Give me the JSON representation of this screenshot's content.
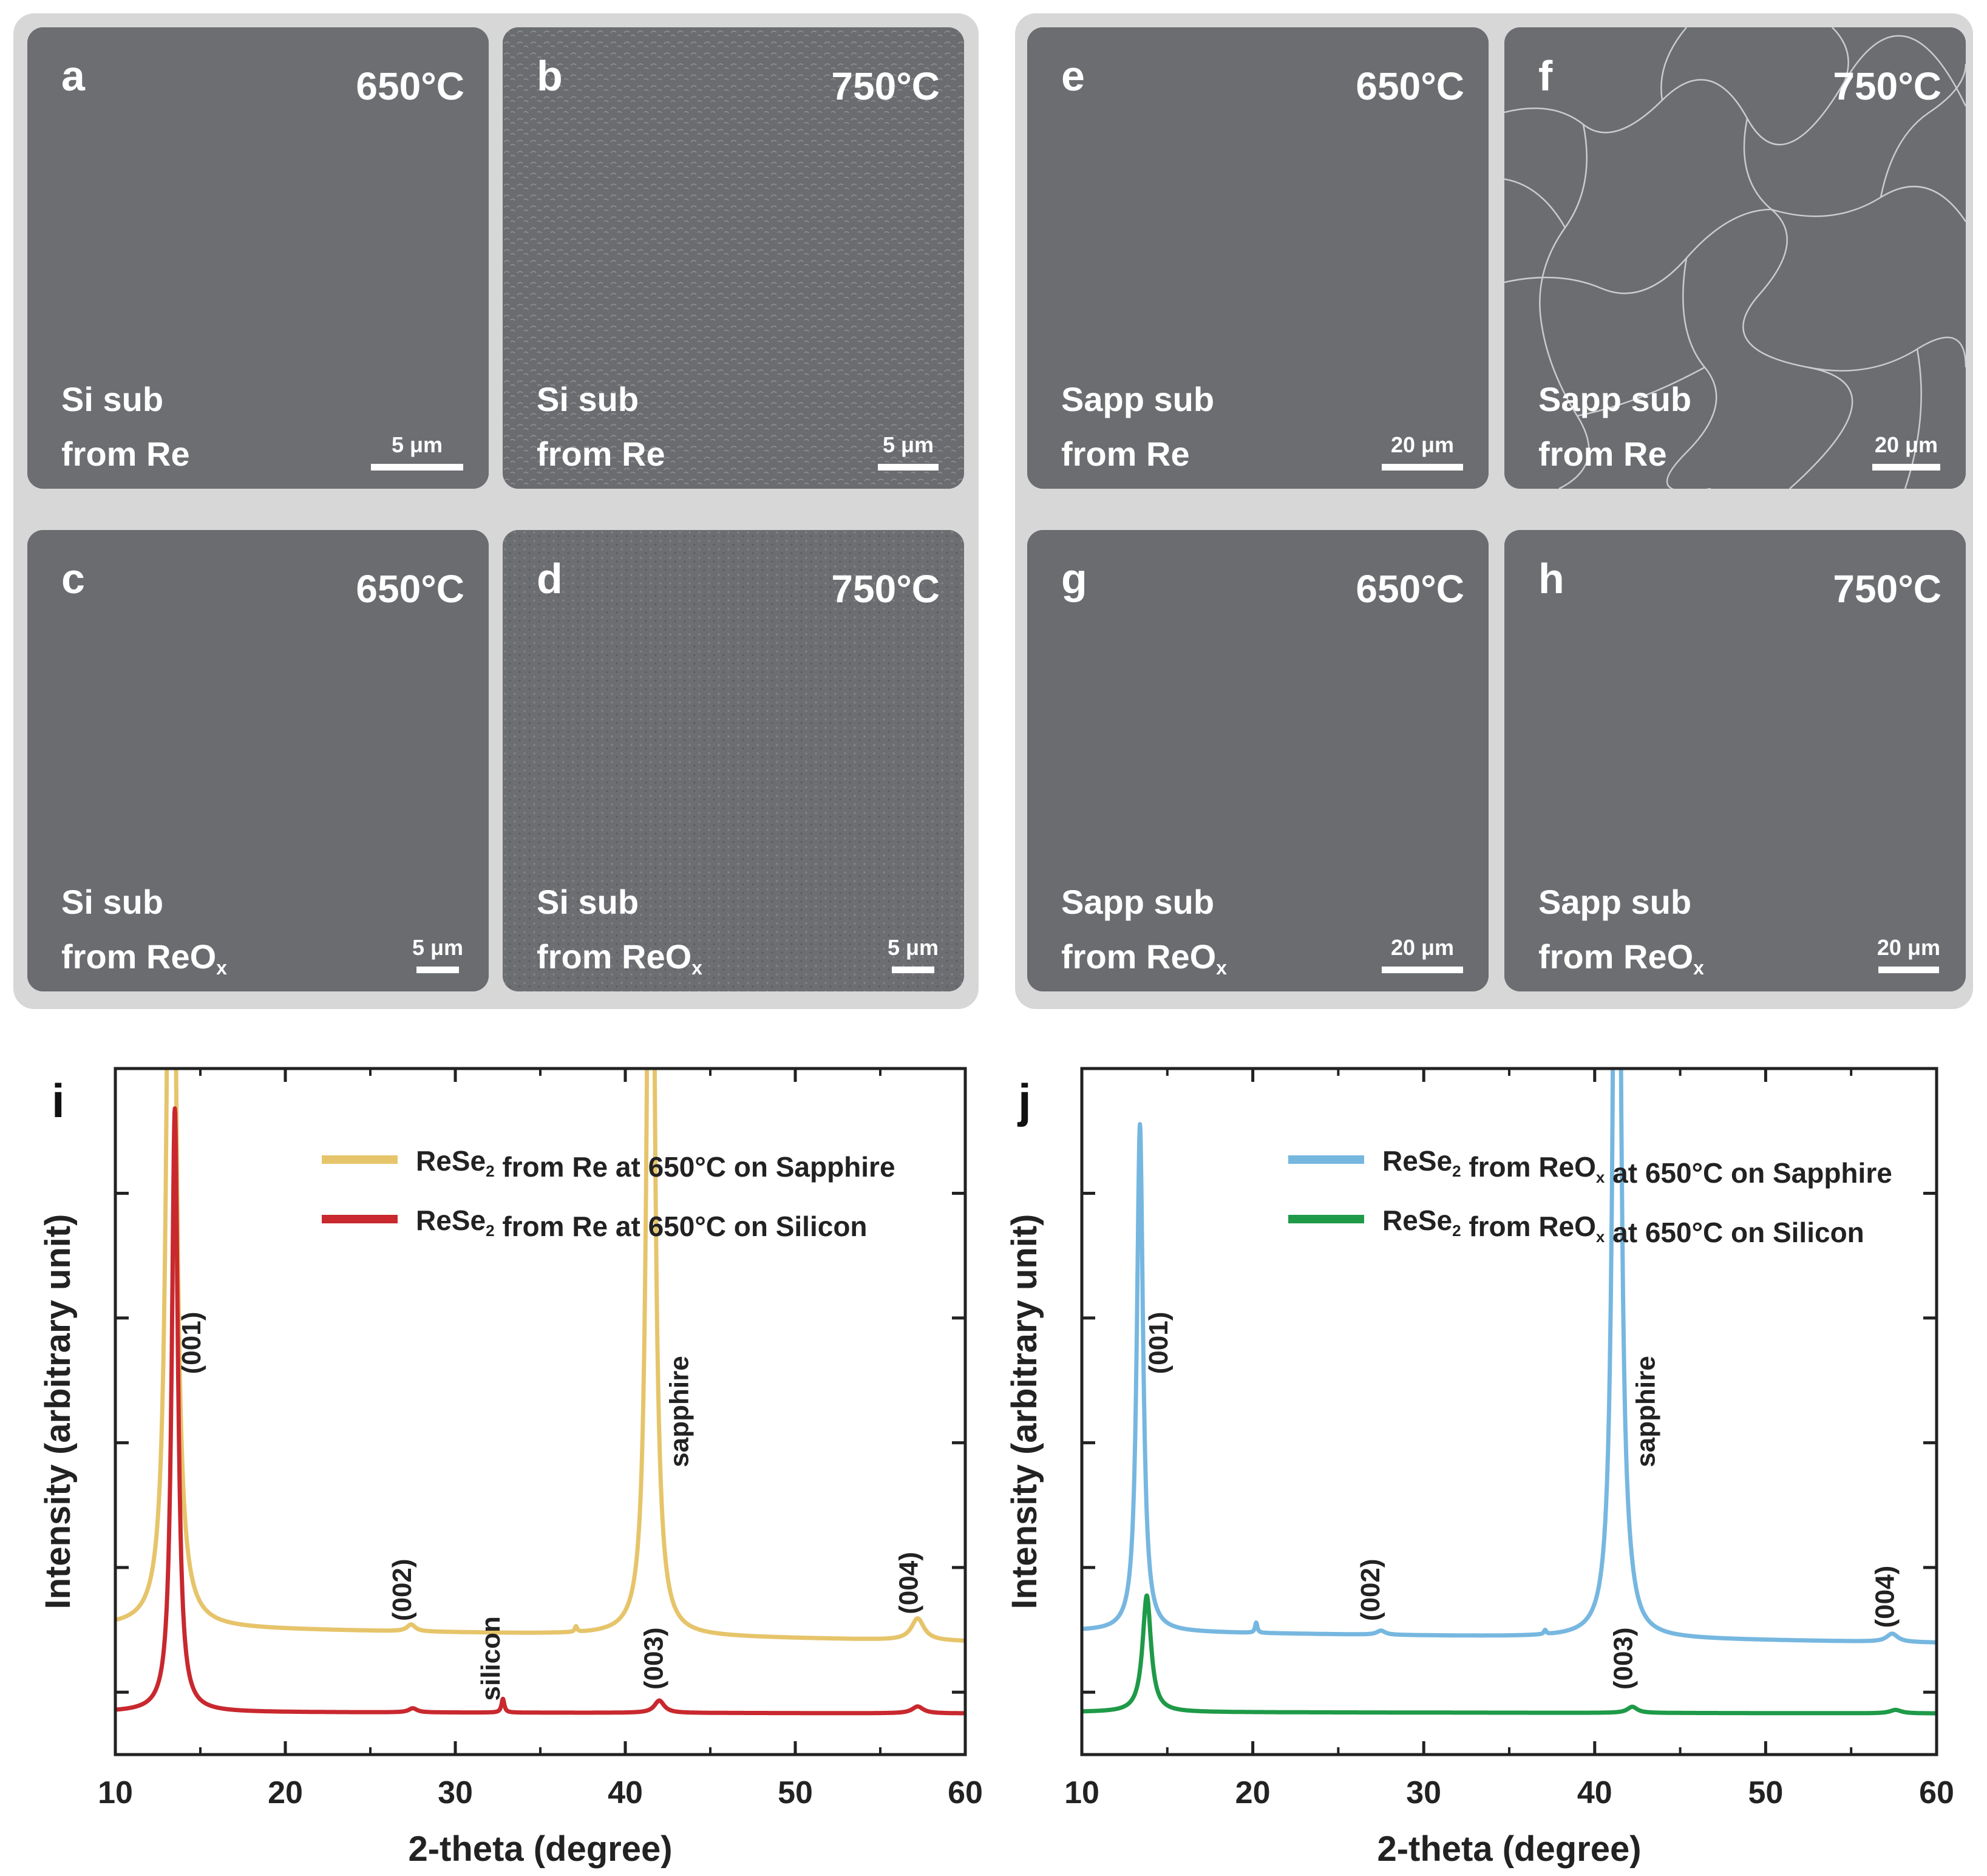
{
  "sem_panels": [
    {
      "letter": "a",
      "temp": "650°C",
      "substrate": "Si sub",
      "source_main": "from Re",
      "source_sub": "",
      "scale": "5 μm"
    },
    {
      "letter": "b",
      "temp": "750°C",
      "substrate": "Si sub",
      "source_main": "from Re",
      "source_sub": "",
      "scale": "5 μm"
    },
    {
      "letter": "c",
      "temp": "650°C",
      "substrate": "Si sub",
      "source_main": "from ReO",
      "source_sub": "x",
      "scale": "5 μm"
    },
    {
      "letter": "d",
      "temp": "750°C",
      "substrate": "Si sub",
      "source_main": "from ReO",
      "source_sub": "x",
      "scale": "5 μm"
    },
    {
      "letter": "e",
      "temp": "650°C",
      "substrate": "Sapp sub",
      "source_main": "from Re",
      "source_sub": "",
      "scale": "20 μm"
    },
    {
      "letter": "f",
      "temp": "750°C",
      "substrate": "Sapp sub",
      "source_main": "from Re",
      "source_sub": "",
      "scale": "20 μm"
    },
    {
      "letter": "g",
      "temp": "650°C",
      "substrate": "Sapp sub",
      "source_main": "from ReO",
      "source_sub": "x",
      "scale": "20 μm"
    },
    {
      "letter": "h",
      "temp": "750°C",
      "substrate": "Sapp sub",
      "source_main": "from ReO",
      "source_sub": "x",
      "scale": "20 μm"
    }
  ],
  "colors": {
    "sem_bg": "#6a6c70",
    "group_bg": "#d7d7d7",
    "yellow": "#e6c46a",
    "red": "#c8282e",
    "blue": "#76b7e0",
    "green": "#1e9a48"
  },
  "chart_data": [
    {
      "type": "line",
      "panel_letter": "i",
      "xlabel": "2-theta (degree)",
      "ylabel": "Intensity (arbitrary unit)",
      "xlim": [
        10,
        60
      ],
      "ylim": [
        0,
        100
      ],
      "xticks": [
        10,
        20,
        30,
        40,
        50,
        60
      ],
      "series": [
        {
          "name": "ReSe2 from Re at 650°C on Sapphire",
          "legend_main": "ReSe",
          "legend_sub": "2",
          "legend_rest": " from Re at 650°C on Sapphire",
          "color": "#e6c46a",
          "baseline": [
            [
              10,
              18.6
            ],
            [
              60,
              16.5
            ]
          ],
          "peaks": [
            {
              "x": 13.3,
              "h": 180,
              "w": 0.25
            },
            {
              "x": 27.4,
              "h": 1.0,
              "w": 0.3
            },
            {
              "x": 37.1,
              "h": 0.8,
              "w": 0.08
            },
            {
              "x": 41.5,
              "h": 170,
              "w": 0.22
            },
            {
              "x": 42.0,
              "h": 1.6,
              "w": 0.4
            },
            {
              "x": 57.2,
              "h": 3.2,
              "w": 0.45
            }
          ]
        },
        {
          "name": "ReSe2 from Re at 650°C on Silicon",
          "legend_main": "ReSe",
          "legend_sub": "2",
          "legend_rest": " from Re at 650°C on Silicon",
          "color": "#c8282e",
          "baseline": [
            [
              10,
              6.2
            ],
            [
              60,
              6.0
            ]
          ],
          "peaks": [
            {
              "x": 13.5,
              "h": 88,
              "w": 0.22
            },
            {
              "x": 27.5,
              "h": 0.6,
              "w": 0.3
            },
            {
              "x": 32.8,
              "h": 2.0,
              "w": 0.1
            },
            {
              "x": 42.0,
              "h": 1.8,
              "w": 0.35
            },
            {
              "x": 57.2,
              "h": 1.0,
              "w": 0.4
            }
          ]
        }
      ],
      "annotations": [
        {
          "text": "(001)",
          "x": 15.0,
          "y": 60
        },
        {
          "text": "(002)",
          "x": 27.4,
          "y": 24
        },
        {
          "text": "silicon",
          "x": 32.6,
          "y": 14
        },
        {
          "text": "(003)",
          "x": 42.2,
          "y": 14
        },
        {
          "text": "sapphire",
          "x": 43.7,
          "y": 50
        },
        {
          "text": "(004)",
          "x": 57.2,
          "y": 25
        }
      ]
    },
    {
      "type": "line",
      "panel_letter": "j",
      "xlabel": "2-theta (degree)",
      "ylabel": "Intensity (arbitrary unit)",
      "xlim": [
        10,
        60
      ],
      "ylim": [
        0,
        100
      ],
      "xticks": [
        10,
        20,
        30,
        40,
        50,
        60
      ],
      "series": [
        {
          "name": "ReSe2 from ReOx at 650°C on Sapphire",
          "legend_main": "ReSe",
          "legend_sub": "2",
          "legend_rest": " from ReO",
          "legend_sub2": "x",
          "legend_rest2": " at 650°C on Sapphire",
          "color": "#76b7e0",
          "baseline": [
            [
              10,
              18.0
            ],
            [
              60,
              16.3
            ]
          ],
          "peaks": [
            {
              "x": 13.4,
              "h": 74,
              "w": 0.22
            },
            {
              "x": 20.2,
              "h": 1.5,
              "w": 0.08
            },
            {
              "x": 27.5,
              "h": 0.6,
              "w": 0.3
            },
            {
              "x": 37.1,
              "h": 0.6,
              "w": 0.08
            },
            {
              "x": 41.3,
              "h": 180,
              "w": 0.22
            },
            {
              "x": 42.0,
              "h": 1.5,
              "w": 0.4
            },
            {
              "x": 57.4,
              "h": 1.2,
              "w": 0.4
            }
          ]
        },
        {
          "name": "ReSe2 from ReOx at 650°C on Silicon",
          "legend_main": "ReSe",
          "legend_sub": "2",
          "legend_rest": " from ReO",
          "legend_sub2": "x",
          "legend_rest2": " at 650°C on Silicon",
          "color": "#1e9a48",
          "baseline": [
            [
              10,
              6.2
            ],
            [
              60,
              6.0
            ]
          ],
          "peaks": [
            {
              "x": 13.8,
              "h": 17,
              "w": 0.3
            },
            {
              "x": 42.2,
              "h": 0.9,
              "w": 0.35
            },
            {
              "x": 57.6,
              "h": 0.5,
              "w": 0.4
            }
          ]
        }
      ],
      "annotations": [
        {
          "text": "(001)",
          "x": 15.0,
          "y": 60
        },
        {
          "text": "(002)",
          "x": 27.4,
          "y": 24
        },
        {
          "text": "(003)",
          "x": 42.2,
          "y": 14
        },
        {
          "text": "sapphire",
          "x": 43.5,
          "y": 50
        },
        {
          "text": "(004)",
          "x": 57.5,
          "y": 23
        }
      ]
    }
  ]
}
